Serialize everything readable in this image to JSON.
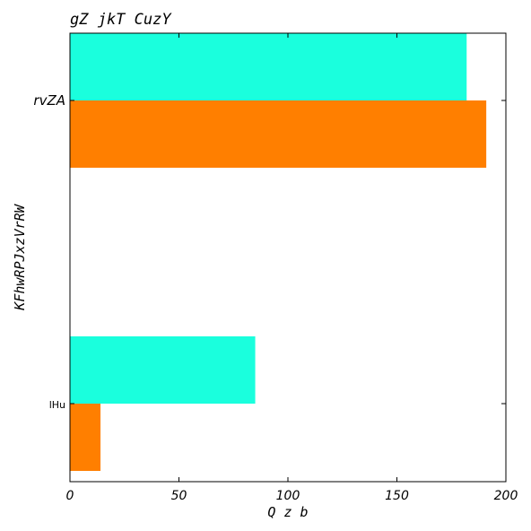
{
  "chart_data": {
    "type": "bar",
    "orientation": "horizontal",
    "title": "gZ  jkT  CuzY",
    "xlabel": "Q  z  b",
    "ylabel": "KFhwRPJxzVrRW",
    "categories": [
      "rvZA",
      "lHu"
    ],
    "series": [
      {
        "color": "#1affdd",
        "values": [
          182,
          85
        ]
      },
      {
        "color": "#ff7f00",
        "values": [
          191,
          14
        ]
      }
    ],
    "xlim": [
      0,
      200
    ],
    "xticks": [
      0,
      50,
      100,
      150,
      200
    ],
    "grid": false,
    "legend": "none"
  }
}
